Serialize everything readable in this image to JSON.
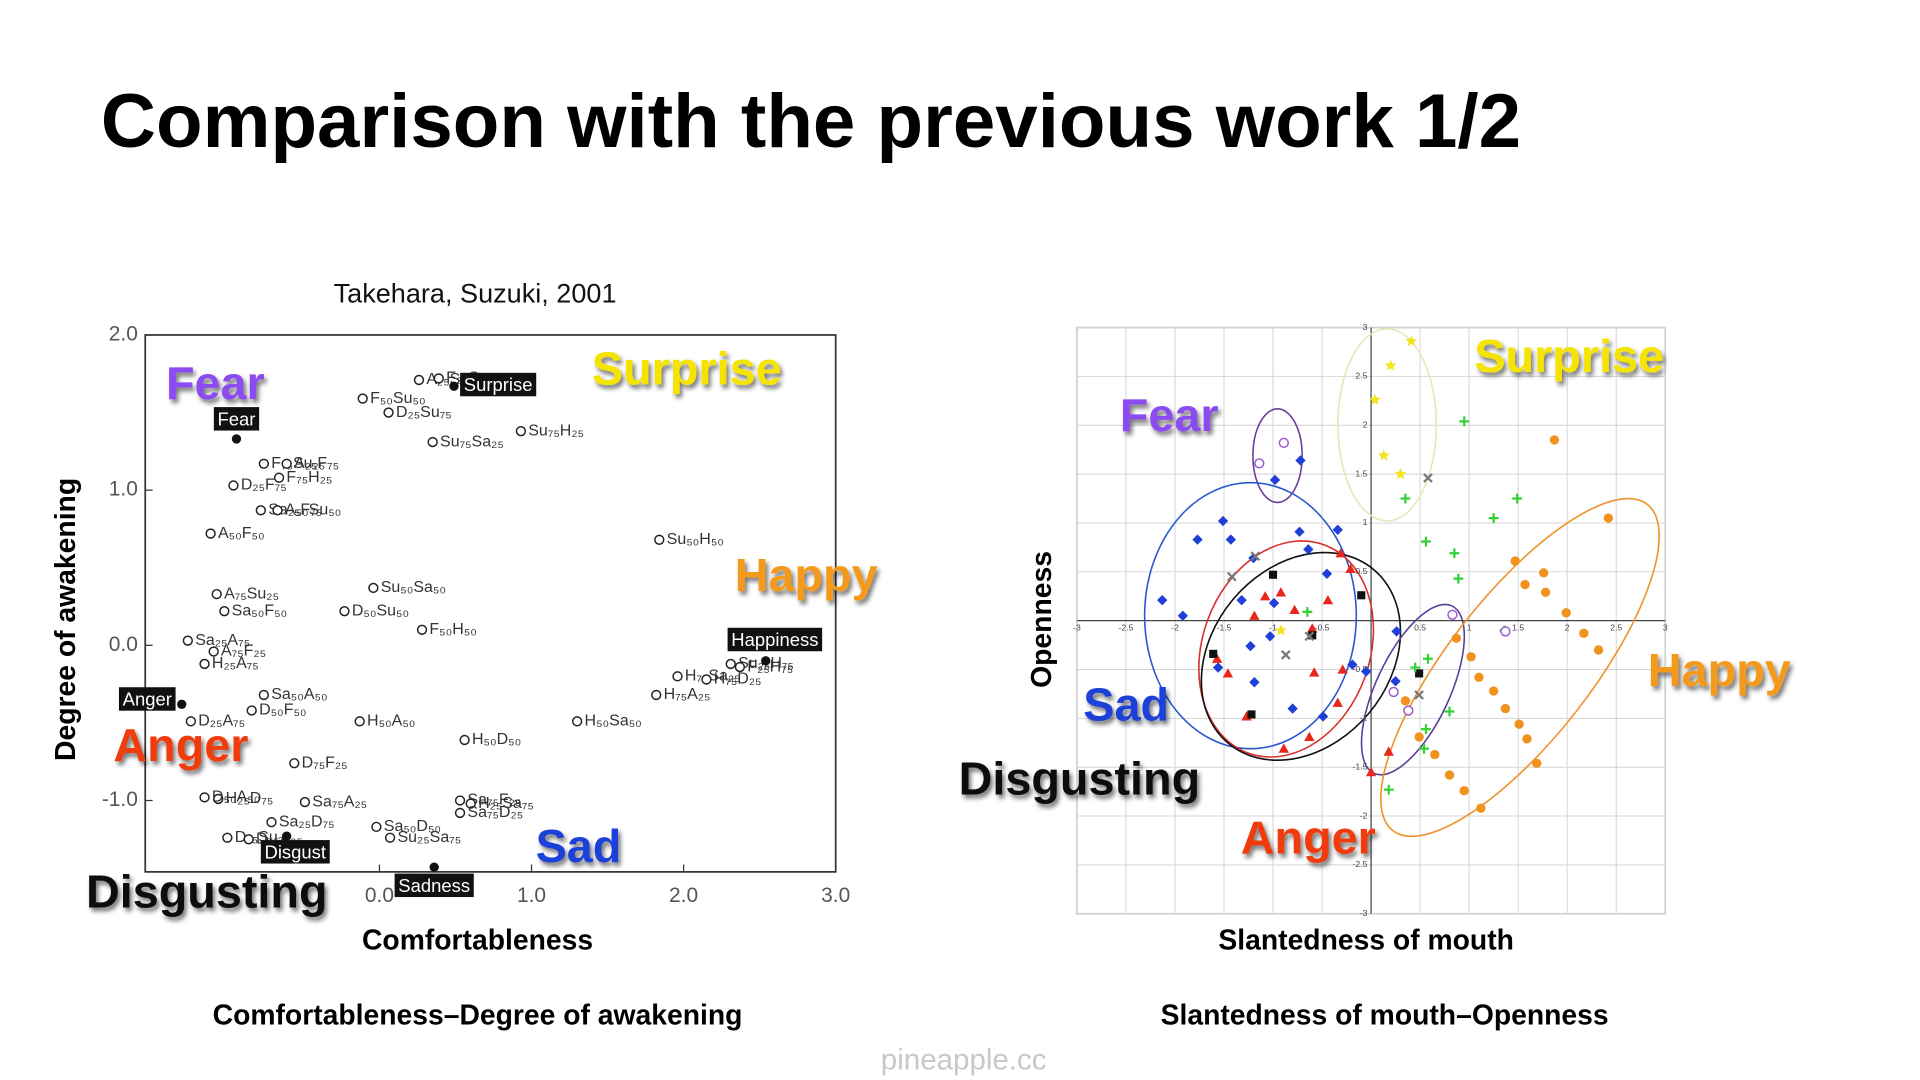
{
  "title": "Comparison with the previous work 1/2",
  "watermark": "pineapple.cc",
  "chart_data": [
    {
      "type": "scatter",
      "title": "Takehara, Suzuki, 2001",
      "x_label": "Comfortableness",
      "y_label": "Degree of awakening",
      "caption": "Comfortableness–Degree of awakening",
      "xlim": [
        -1.54,
        3.0
      ],
      "ylim": [
        -1.46,
        2.0
      ],
      "grid": false,
      "xticks": [
        {
          "value": 0,
          "label": "0.0"
        },
        {
          "value": 1,
          "label": "1.0"
        },
        {
          "value": 2,
          "label": "2.0"
        },
        {
          "value": 3,
          "label": "3.0"
        }
      ],
      "yticks": [
        {
          "value": 2,
          "label": "2.0"
        },
        {
          "value": 1,
          "label": "1.0"
        },
        {
          "value": 0,
          "label": "0.0"
        },
        {
          "value": -1,
          "label": "-1.0"
        }
      ],
      "series": [
        {
          "marker": "open-circle",
          "color": "#222222",
          "x": [
            0.26,
            0.39,
            -0.11,
            0.06,
            0.93,
            0.35,
            -0.76,
            -0.61,
            -0.96,
            -0.66,
            -0.78,
            -0.67,
            -1.11,
            1.84,
            -1.07,
            -0.04,
            -1.02,
            -0.23,
            2.31,
            0.28,
            -1.26,
            -1.09,
            1.96,
            2.15,
            2.37,
            -1.15,
            -0.76,
            -0.13,
            0.56,
            1.3,
            1.82,
            -0.84,
            -1.24,
            -0.56,
            -1.06,
            -0.49,
            0.53,
            0.6,
            0.53,
            -1.15,
            -0.71,
            -0.02,
            0.07,
            -1.0,
            -0.86
          ],
          "values": [
            1.71,
            1.72,
            1.59,
            1.5,
            1.38,
            1.31,
            1.17,
            1.17,
            1.03,
            1.08,
            0.87,
            0.87,
            0.72,
            0.68,
            0.33,
            0.37,
            0.22,
            0.22,
            -0.12,
            0.1,
            0.03,
            -0.04,
            -0.2,
            -0.22,
            -0.14,
            -0.12,
            -0.32,
            -0.49,
            -0.61,
            -0.49,
            -0.32,
            -0.42,
            -0.49,
            -0.76,
            -0.99,
            -1.01,
            -1.0,
            -1.02,
            -1.08,
            -0.98,
            -1.14,
            -1.17,
            -1.24,
            -1.24,
            -1.25
          ],
          "labels": [
            "A₂₅Su₇₅",
            "F₂₅Su₇₅",
            "F₅₀Su₅₀",
            "D₂₅Su₇₅",
            "Su₇₅H₂₅",
            "Su₇₅Sa₂₅",
            "F₇₅Su₂₅",
            "A₂₅F₇₅",
            "D₂₅F₇₅",
            "F₇₅H₂₅",
            "Sa₂₅F₇₅",
            "A₅₀Su₅₀",
            "A₅₀F₅₀",
            "Su₅₀H₅₀",
            "A₇₅Su₂₅",
            "Su₅₀Sa₅₀",
            "Sa₅₀F₅₀",
            "D₅₀Su₅₀",
            "Su₂₅H₇₅",
            "F₅₀H₅₀",
            "Sa₂₅A₇₅",
            "A₇₅F₂₅",
            "H₇₅Sa₂₅",
            "H₇₅D₂₅",
            "F₂₅H₇₅",
            "H₂₅A₇₅",
            "Sa₅₀A₅₀",
            "H₅₀A₅₀",
            "H₅₀D₅₀",
            "H₅₀Sa₅₀",
            "H₇₅A₂₅",
            "D₅₀F₅₀",
            "D₂₅A₇₅",
            "D₇₅F₂₅",
            "H₂₅D₇₅",
            "Sa₇₅A₂₅",
            "Sa₇₅F₂₅",
            "H₂₅Sa₇₅",
            "Sa₇₅D₂₅",
            "D₅₀A₅₀",
            "Sa₂₅D₇₅",
            "Sa₅₀D₅₀",
            "Su₂₅Sa₇₅",
            "D₇₅Su₂₅",
            "D₇₅A₂₅"
          ]
        },
        {
          "marker": "filled-circle",
          "color": "#111111",
          "x": [
            0.49,
            -0.94,
            2.54,
            -1.3,
            -0.61,
            0.36
          ],
          "values": [
            1.67,
            1.33,
            -0.1,
            -0.38,
            -1.23,
            -1.43
          ],
          "labels": [
            "Surprise",
            "Fear",
            "Happiness",
            "Anger",
            "Disgust",
            "Sadness"
          ]
        }
      ],
      "annotations": [
        {
          "text": "Fear",
          "color": "#8b4cf0"
        },
        {
          "text": "Surprise",
          "color": "#f5e400"
        },
        {
          "text": "Happy",
          "color": "#f39a1e"
        },
        {
          "text": "Anger",
          "color": "#f03a10"
        },
        {
          "text": "Sad",
          "color": "#1e3fd8"
        },
        {
          "text": "Disgusting",
          "color": "#111111"
        }
      ]
    },
    {
      "type": "scatter",
      "x_label": "Slantedness of mouth",
      "y_label": "Openness",
      "caption": "Slantedness of mouth–Openness",
      "xlim": [
        -3,
        3
      ],
      "ylim": [
        -3,
        3
      ],
      "grid": true,
      "xticks": [
        -3,
        -2.5,
        -2,
        -1.5,
        -1,
        -0.5,
        0.5,
        1,
        1.5,
        2,
        2.5,
        3
      ],
      "yticks": [
        -3,
        -2.5,
        -2,
        -1.5,
        -1,
        -0.5,
        0.5,
        1,
        1.5,
        2,
        2.5,
        3
      ],
      "series": [
        {
          "marker": "diamond",
          "color": "#1f3fd6",
          "x": [
            -1.77,
            -1.51,
            -0.98,
            -0.72,
            -1.43,
            -1.2,
            -0.73,
            -0.64,
            -2.13,
            -1.92,
            -1.32,
            -0.99,
            -1.03,
            -0.45,
            -0.34,
            -1.56,
            -1.23,
            -1.19,
            -0.8,
            -0.49,
            -0.19,
            0.26,
            0.25,
            -0.05
          ],
          "values": [
            0.83,
            1.02,
            1.44,
            1.64,
            0.83,
            0.64,
            0.91,
            0.73,
            0.21,
            0.05,
            0.21,
            0.18,
            -0.16,
            0.48,
            0.93,
            -0.48,
            -0.26,
            -0.63,
            -0.9,
            -0.98,
            -0.45,
            -0.11,
            -0.62,
            -0.52
          ]
        },
        {
          "marker": "triangle",
          "color": "#e8261c",
          "x": [
            -1.08,
            -0.92,
            -1.19,
            -0.78,
            -0.6,
            -0.31,
            -0.21,
            -0.44,
            -1.57,
            -1.46,
            -1.27,
            -0.89,
            -0.63,
            -0.58,
            -0.29,
            -0.34,
            0.0,
            0.18
          ],
          "values": [
            0.25,
            0.29,
            0.05,
            0.11,
            -0.08,
            0.69,
            0.53,
            0.21,
            -0.39,
            -0.54,
            -0.98,
            -1.31,
            -1.19,
            -0.53,
            -0.5,
            -0.84,
            -1.55,
            -1.34
          ]
        },
        {
          "marker": "square",
          "color": "#111111",
          "x": [
            -1.0,
            -0.1,
            -0.6,
            -1.61,
            0.49,
            -1.22
          ],
          "values": [
            0.47,
            0.26,
            -0.15,
            -0.34,
            -0.54,
            -0.96
          ]
        },
        {
          "marker": "cross",
          "color": "#777777",
          "x": [
            -1.42,
            -1.18,
            -0.87,
            -0.63,
            0.58,
            0.49
          ],
          "values": [
            0.45,
            0.66,
            -0.35,
            -0.16,
            1.46,
            -0.76
          ]
        },
        {
          "marker": "plus",
          "color": "#34d134",
          "x": [
            0.95,
            0.35,
            1.49,
            1.25,
            0.56,
            0.85,
            0.89,
            1.36,
            0.58,
            0.45,
            0.8,
            0.56,
            0.54,
            0.18,
            -0.65
          ],
          "values": [
            2.04,
            1.25,
            1.25,
            1.05,
            0.81,
            0.69,
            0.43,
            -0.1,
            -0.39,
            -0.48,
            -0.93,
            -1.11,
            -1.31,
            -1.73,
            0.09
          ]
        },
        {
          "marker": "filled-circle",
          "color": "#f0921e",
          "x": [
            1.87,
            2.42,
            1.47,
            1.76,
            1.57,
            1.78,
            1.99,
            2.17,
            2.32,
            0.87,
            1.02,
            1.1,
            1.25,
            1.37,
            1.51,
            1.59,
            1.69,
            0.35,
            0.49,
            0.65,
            0.8,
            0.95,
            1.12
          ],
          "values": [
            1.85,
            1.05,
            0.61,
            0.49,
            0.37,
            0.29,
            0.08,
            -0.13,
            -0.3,
            -0.18,
            -0.37,
            -0.58,
            -0.72,
            -0.9,
            -1.06,
            -1.21,
            -1.46,
            -0.82,
            -1.19,
            -1.37,
            -1.58,
            -1.74,
            -1.92
          ]
        },
        {
          "marker": "star",
          "color": "#f2e51c",
          "x": [
            0.41,
            0.2,
            0.04,
            0.13,
            0.3,
            -0.92
          ],
          "values": [
            2.86,
            2.61,
            2.26,
            1.69,
            1.5,
            -0.1
          ]
        },
        {
          "marker": "open-circle",
          "color": "#9b59d0",
          "x": [
            -0.89,
            -1.14,
            0.83,
            1.37,
            0.23,
            0.38
          ],
          "values": [
            1.82,
            1.61,
            0.06,
            -0.11,
            -0.73,
            -0.92
          ]
        }
      ],
      "annotations": [
        {
          "text": "Surprise",
          "color": "#f5e400"
        },
        {
          "text": "Fear",
          "color": "#8b4cf0"
        },
        {
          "text": "Happy",
          "color": "#f39a1e"
        },
        {
          "text": "Sad",
          "color": "#1e3fd8"
        },
        {
          "text": "Disgusting",
          "color": "#111111"
        },
        {
          "text": "Anger",
          "color": "#f03a10"
        }
      ]
    }
  ]
}
